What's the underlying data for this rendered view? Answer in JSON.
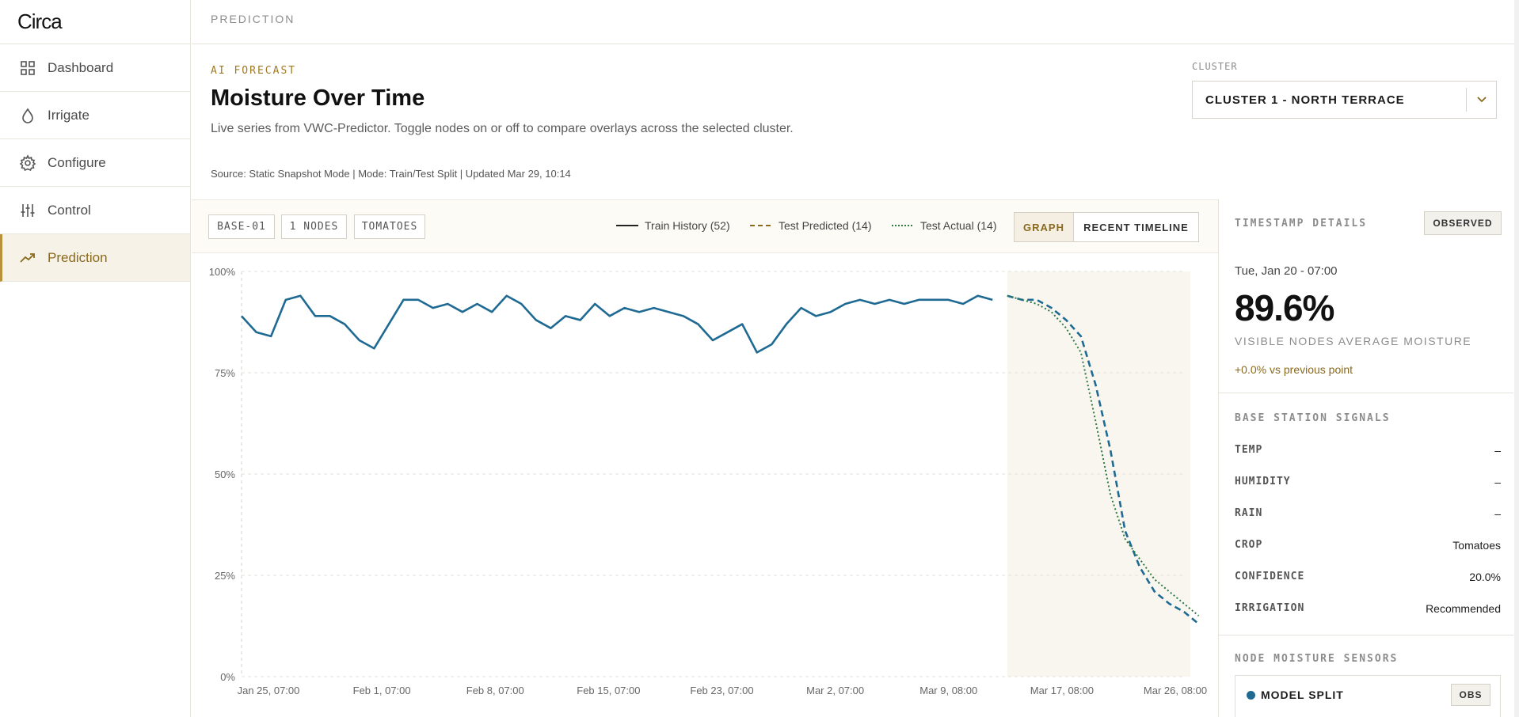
{
  "app": {
    "name": "Circa"
  },
  "sidebar": {
    "items": [
      {
        "label": "Dashboard",
        "icon": "grid-icon"
      },
      {
        "label": "Irrigate",
        "icon": "drop-icon"
      },
      {
        "label": "Configure",
        "icon": "gear-icon"
      },
      {
        "label": "Control",
        "icon": "sliders-icon"
      },
      {
        "label": "Prediction",
        "icon": "trend-icon",
        "active": true
      }
    ]
  },
  "topbar": {
    "title": "PREDICTION"
  },
  "header": {
    "eyebrow": "AI FORECAST",
    "title": "Moisture Over Time",
    "description": "Live series from VWC-Predictor. Toggle nodes on or off to compare overlays across the selected cluster.",
    "source": "Source: Static Snapshot Mode | Mode: Train/Test Split | Updated Mar 29, 10:14"
  },
  "cluster": {
    "label": "CLUSTER",
    "selected": "CLUSTER 1 - NORTH TERRACE"
  },
  "toolbar": {
    "chips": [
      "BASE-01",
      "1 NODES",
      "TOMATOES"
    ],
    "legend": {
      "train": "Train History (52)",
      "predicted": "Test Predicted (14)",
      "actual": "Test Actual (14)"
    },
    "view_toggle": {
      "graph": "GRAPH",
      "timeline": "RECENT TIMELINE",
      "active": "graph"
    }
  },
  "colors": {
    "accent": "#a07a22",
    "series": "#1f6a93",
    "actual": "#2f7a45",
    "test_region": "#f8f6ef"
  },
  "chart_data": {
    "type": "line",
    "ylabel": "",
    "xlabel": "",
    "y_ticks": [
      "0%",
      "25%",
      "50%",
      "75%",
      "100%"
    ],
    "ylim": [
      0,
      100
    ],
    "x_tick_labels": [
      "Jan 25, 07:00",
      "Feb 1, 07:00",
      "Feb 8, 07:00",
      "Feb 15, 07:00",
      "Feb 23, 07:00",
      "Mar 2, 07:00",
      "Mar 9, 08:00",
      "Mar 17, 08:00",
      "Mar 26, 08:00"
    ],
    "grid": true,
    "legend_placement": "top",
    "series": [
      {
        "name": "Train History (52)",
        "style": "solid",
        "values": [
          89,
          85,
          84,
          93,
          94,
          89,
          89,
          87,
          83,
          81,
          87,
          93,
          93,
          91,
          92,
          90,
          92,
          90,
          94,
          92,
          88,
          86,
          89,
          88,
          92,
          89,
          91,
          90,
          91,
          90,
          89,
          87,
          83,
          85,
          87,
          80,
          82,
          87,
          91,
          89,
          90,
          92,
          93,
          92,
          93,
          92,
          93,
          93,
          93,
          92,
          94,
          93
        ]
      },
      {
        "name": "Test Predicted (14)",
        "style": "dashed",
        "values": [
          94,
          93,
          93,
          91,
          88,
          84,
          72,
          56,
          36,
          27,
          21,
          18,
          16,
          13
        ]
      },
      {
        "name": "Test Actual (14)",
        "style": "dotted",
        "values": [
          94,
          93,
          92,
          90,
          86,
          80,
          63,
          45,
          34,
          29,
          24,
          21,
          18,
          15
        ]
      }
    ]
  },
  "timestamp_details": {
    "heading": "TIMESTAMP DETAILS",
    "badge": "OBSERVED",
    "date": "Tue, Jan 20 - 07:00",
    "value": "89.6%",
    "value_label": "VISIBLE NODES AVERAGE MOISTURE",
    "delta": "+0.0% vs previous point"
  },
  "base_station": {
    "heading": "BASE STATION SIGNALS",
    "rows": [
      {
        "key": "TEMP",
        "value": "–"
      },
      {
        "key": "HUMIDITY",
        "value": "–"
      },
      {
        "key": "RAIN",
        "value": "–"
      },
      {
        "key": "CROP",
        "value": "Tomatoes"
      },
      {
        "key": "CONFIDENCE",
        "value": "20.0%"
      },
      {
        "key": "IRRIGATION",
        "value": "Recommended"
      }
    ]
  },
  "node_sensors": {
    "heading": "NODE MOISTURE SENSORS",
    "items": [
      {
        "label": "MODEL SPLIT",
        "badge": "OBS"
      }
    ]
  }
}
